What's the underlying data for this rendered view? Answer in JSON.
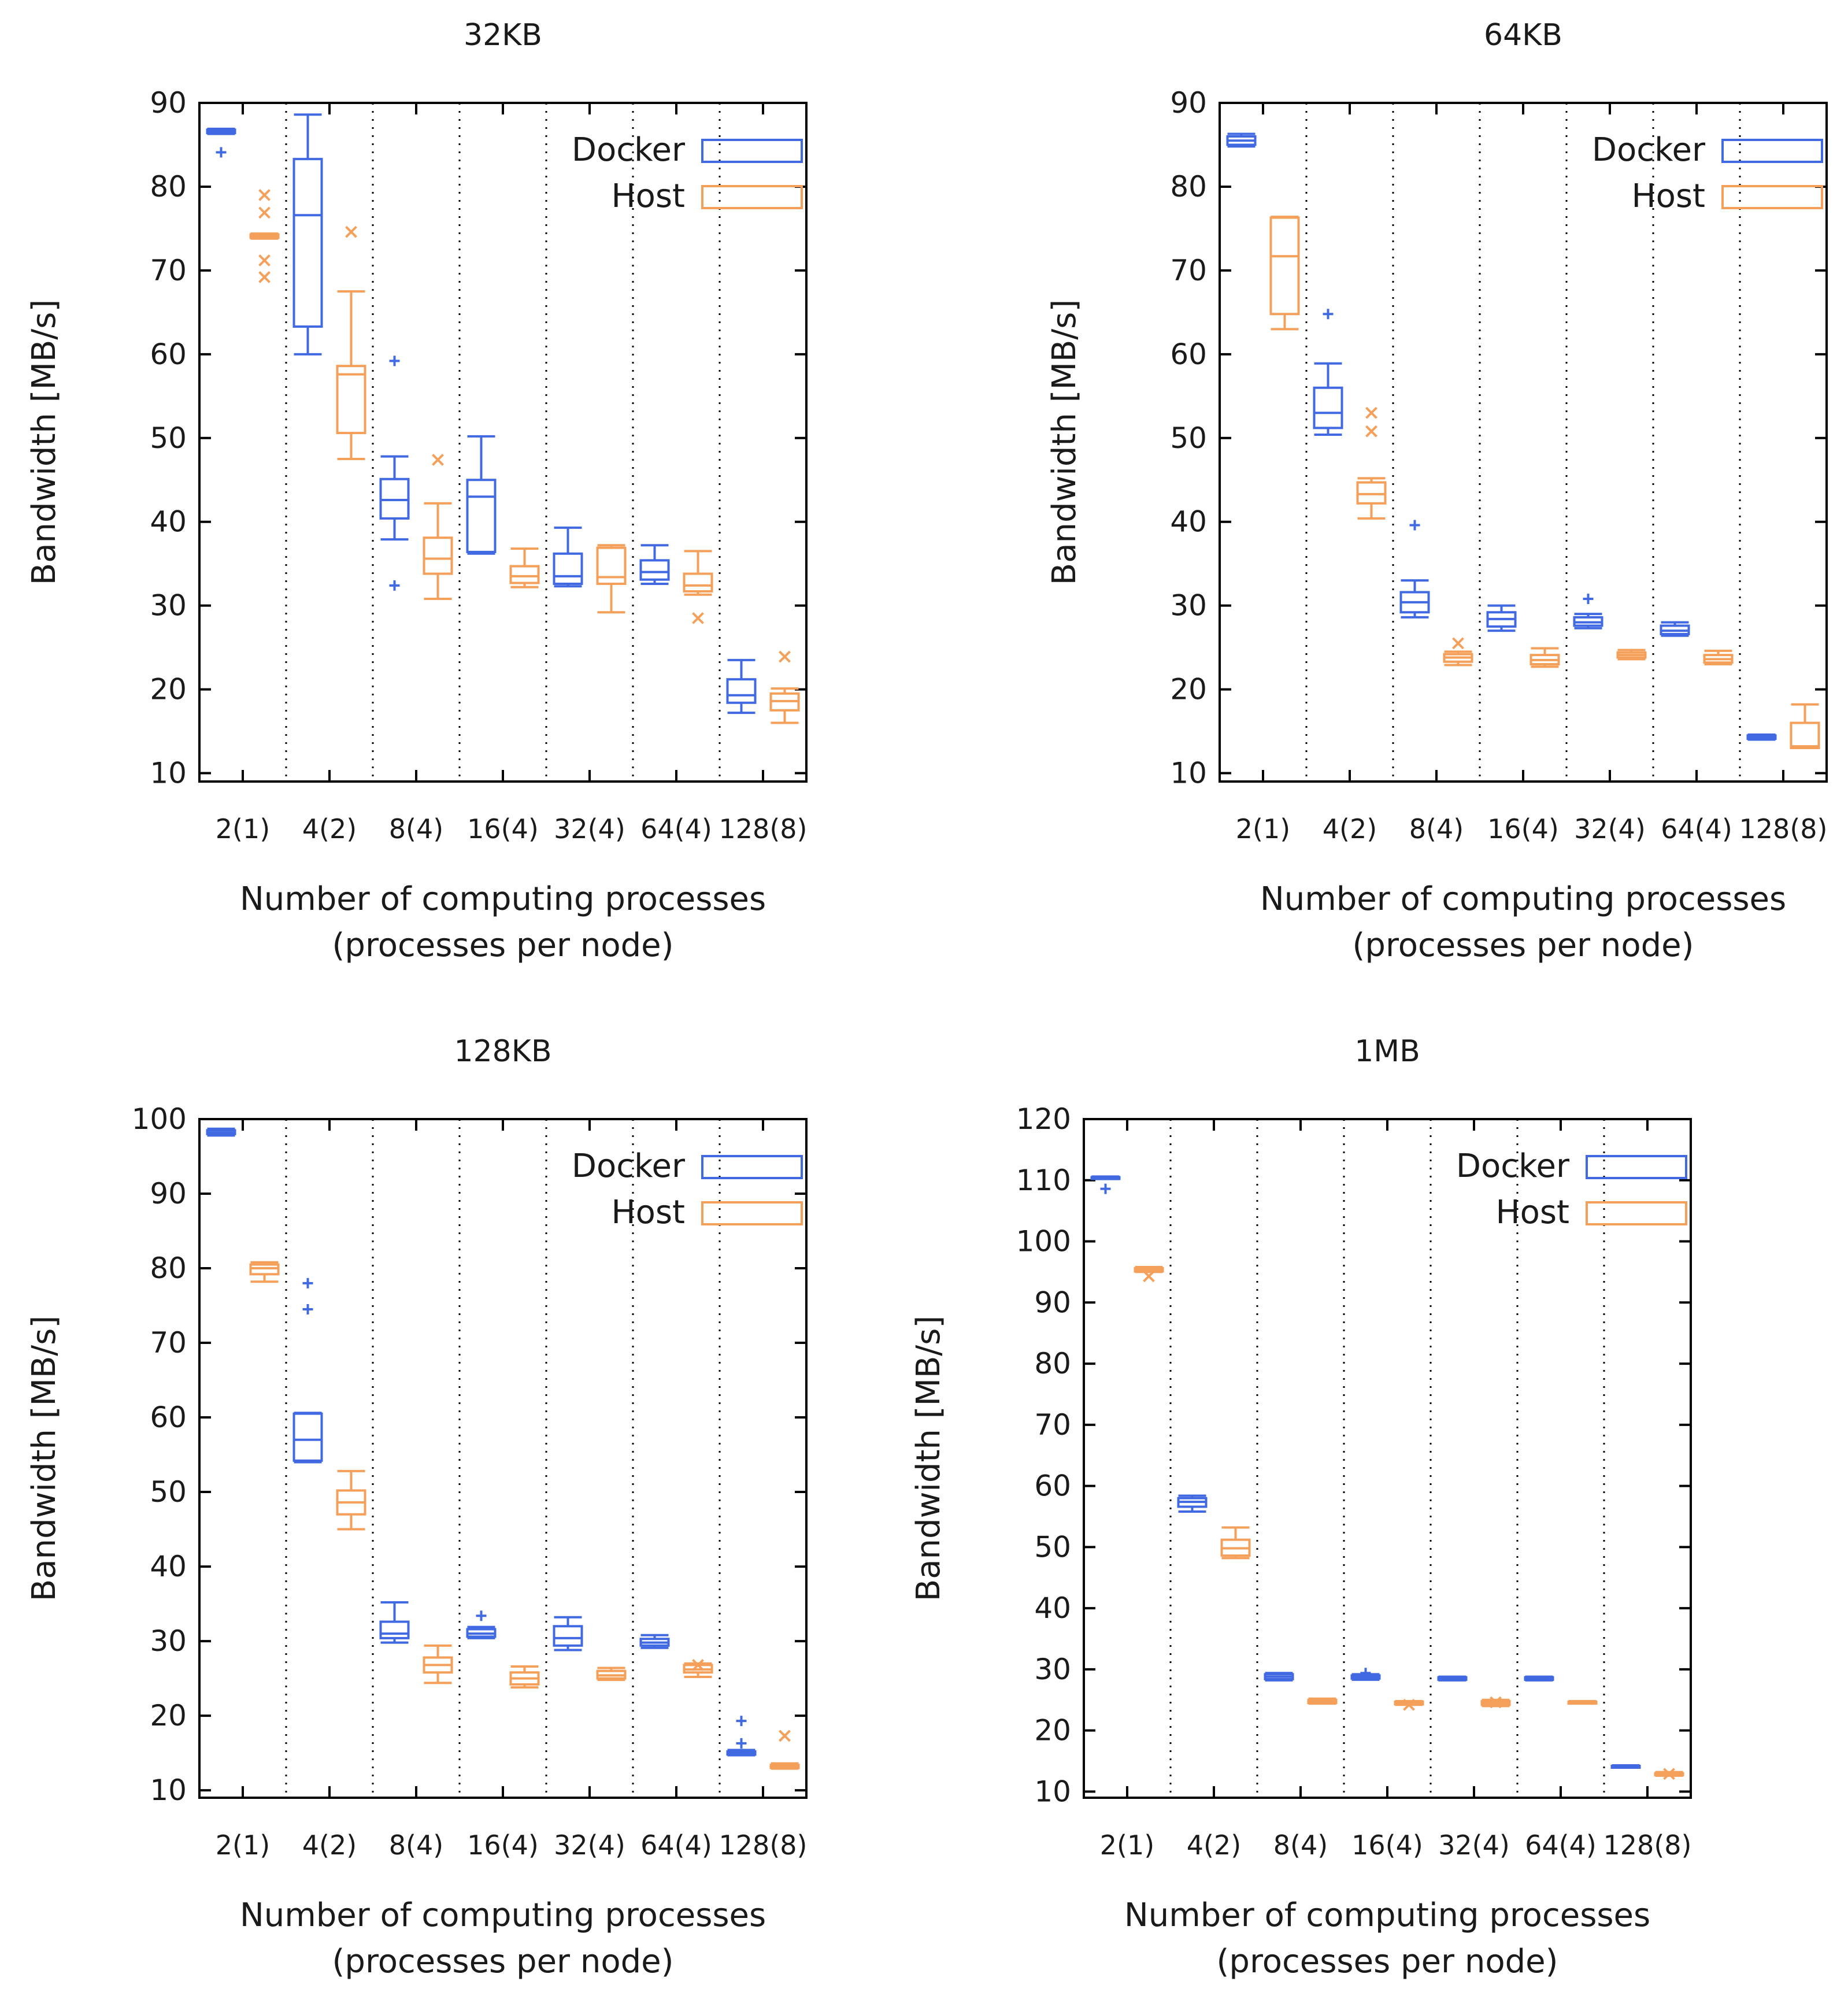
{
  "chart_data": [
    {
      "type": "boxplot",
      "title": "32KB",
      "xlabel": "Number of computing processes",
      "xlabel2": "(processes per node)",
      "ylabel": "Bandwidth [MB/s]",
      "ylim": [
        9,
        90
      ],
      "yticks": [
        10,
        20,
        30,
        40,
        50,
        60,
        70,
        80,
        90
      ],
      "categories": [
        "2(1)",
        "4(2)",
        "8(4)",
        "16(4)",
        "32(4)",
        "64(4)",
        "128(8)"
      ],
      "legend": [
        "Docker",
        "Host"
      ],
      "series": [
        {
          "name": "Docker",
          "color": "#4169e1",
          "outlier_marker": "+",
          "boxes": [
            {
              "min": 86.3,
              "q1": 86.4,
              "median": 86.6,
              "q3": 86.8,
              "max": 86.9,
              "outliers": [
                84.1
              ]
            },
            {
              "min": 60.0,
              "q1": 63.3,
              "median": 76.6,
              "q3": 83.3,
              "max": 88.6,
              "outliers": []
            },
            {
              "min": 37.9,
              "q1": 40.4,
              "median": 42.6,
              "q3": 45.1,
              "max": 47.8,
              "outliers": [
                59.2,
                32.4
              ]
            },
            {
              "min": 36.2,
              "q1": 36.4,
              "median": 43.0,
              "q3": 45.0,
              "max": 50.2,
              "outliers": []
            },
            {
              "min": 32.3,
              "q1": 32.6,
              "median": 33.5,
              "q3": 36.2,
              "max": 39.3,
              "outliers": []
            },
            {
              "min": 32.6,
              "q1": 33.1,
              "median": 34.0,
              "q3": 35.4,
              "max": 37.2,
              "outliers": []
            },
            {
              "min": 17.2,
              "q1": 18.4,
              "median": 19.3,
              "q3": 21.2,
              "max": 23.5,
              "outliers": []
            }
          ]
        },
        {
          "name": "Host",
          "color": "#f5a05a",
          "outlier_marker": "x",
          "boxes": [
            {
              "min": 73.8,
              "q1": 73.9,
              "median": 74.1,
              "q3": 74.3,
              "max": 74.4,
              "outliers": [
                79.0,
                76.9,
                71.2,
                69.2
              ]
            },
            {
              "min": 47.5,
              "q1": 50.6,
              "median": 57.6,
              "q3": 58.6,
              "max": 67.5,
              "outliers": [
                74.6
              ]
            },
            {
              "min": 30.8,
              "q1": 33.8,
              "median": 35.6,
              "q3": 38.1,
              "max": 42.2,
              "outliers": [
                47.4
              ]
            },
            {
              "min": 32.2,
              "q1": 32.7,
              "median": 33.5,
              "q3": 34.7,
              "max": 36.8,
              "outliers": []
            },
            {
              "min": 29.2,
              "q1": 32.6,
              "median": 33.4,
              "q3": 36.9,
              "max": 37.2,
              "outliers": []
            },
            {
              "min": 31.3,
              "q1": 31.7,
              "median": 32.4,
              "q3": 33.8,
              "max": 36.5,
              "outliers": [
                28.5
              ]
            },
            {
              "min": 16.0,
              "q1": 17.5,
              "median": 18.6,
              "q3": 19.5,
              "max": 20.1,
              "outliers": [
                23.9
              ]
            }
          ]
        }
      ]
    },
    {
      "type": "boxplot",
      "title": "64KB",
      "xlabel": "Number of computing processes",
      "xlabel2": "(processes per node)",
      "ylabel": "Bandwidth [MB/s]",
      "ylim": [
        9,
        90
      ],
      "yticks": [
        10,
        20,
        30,
        40,
        50,
        60,
        70,
        80,
        90
      ],
      "categories": [
        "2(1)",
        "4(2)",
        "8(4)",
        "16(4)",
        "32(4)",
        "64(4)",
        "128(8)"
      ],
      "legend": [
        "Docker",
        "Host"
      ],
      "series": [
        {
          "name": "Docker",
          "color": "#4169e1",
          "outlier_marker": "+",
          "boxes": [
            {
              "min": 84.8,
              "q1": 85.0,
              "median": 85.5,
              "q3": 86.0,
              "max": 86.3,
              "outliers": []
            },
            {
              "min": 50.4,
              "q1": 51.2,
              "median": 53.0,
              "q3": 56.0,
              "max": 58.9,
              "outliers": [
                64.8
              ]
            },
            {
              "min": 28.6,
              "q1": 29.2,
              "median": 30.4,
              "q3": 31.6,
              "max": 33.0,
              "outliers": [
                39.6
              ]
            },
            {
              "min": 27.0,
              "q1": 27.5,
              "median": 28.4,
              "q3": 29.2,
              "max": 30.0,
              "outliers": []
            },
            {
              "min": 27.3,
              "q1": 27.6,
              "median": 28.0,
              "q3": 28.6,
              "max": 29.0,
              "outliers": [
                30.8
              ]
            },
            {
              "min": 26.4,
              "q1": 26.6,
              "median": 27.0,
              "q3": 27.6,
              "max": 28.0,
              "outliers": []
            },
            {
              "min": 14.0,
              "q1": 14.1,
              "median": 14.3,
              "q3": 14.5,
              "max": 14.6,
              "outliers": []
            }
          ]
        },
        {
          "name": "Host",
          "color": "#f5a05a",
          "outlier_marker": "x",
          "boxes": [
            {
              "min": 63.0,
              "q1": 64.8,
              "median": 71.7,
              "q3": 76.3,
              "max": 76.4,
              "outliers": []
            },
            {
              "min": 40.4,
              "q1": 42.2,
              "median": 43.3,
              "q3": 44.7,
              "max": 45.2,
              "outliers": [
                53.0,
                50.8
              ]
            },
            {
              "min": 22.9,
              "q1": 23.3,
              "median": 23.8,
              "q3": 24.2,
              "max": 24.5,
              "outliers": [
                25.5
              ]
            },
            {
              "min": 22.7,
              "q1": 23.0,
              "median": 23.5,
              "q3": 24.1,
              "max": 24.9,
              "outliers": []
            },
            {
              "min": 23.6,
              "q1": 23.8,
              "median": 24.1,
              "q3": 24.4,
              "max": 24.7,
              "outliers": []
            },
            {
              "min": 23.0,
              "q1": 23.2,
              "median": 23.6,
              "q3": 24.1,
              "max": 24.6,
              "outliers": []
            },
            {
              "min": 13.0,
              "q1": 13.0,
              "median": 13.2,
              "q3": 16.0,
              "max": 18.2,
              "outliers": []
            }
          ]
        }
      ]
    },
    {
      "type": "boxplot",
      "title": "128KB",
      "xlabel": "Number of computing processes",
      "xlabel2": "(processes per node)",
      "ylabel": "Bandwidth [MB/s]",
      "ylim": [
        9,
        100
      ],
      "yticks": [
        10,
        20,
        30,
        40,
        50,
        60,
        70,
        80,
        90,
        100
      ],
      "categories": [
        "2(1)",
        "4(2)",
        "8(4)",
        "16(4)",
        "32(4)",
        "64(4)",
        "128(8)"
      ],
      "legend": [
        "Docker",
        "Host"
      ],
      "series": [
        {
          "name": "Docker",
          "color": "#4169e1",
          "outlier_marker": "+",
          "boxes": [
            {
              "min": 97.8,
              "q1": 98.0,
              "median": 98.2,
              "q3": 98.5,
              "max": 98.7,
              "outliers": []
            },
            {
              "min": 54.0,
              "q1": 54.2,
              "median": 57.0,
              "q3": 60.5,
              "max": 60.6,
              "outliers": [
                78.0,
                74.5
              ]
            },
            {
              "min": 29.8,
              "q1": 30.4,
              "median": 31.0,
              "q3": 32.6,
              "max": 35.2,
              "outliers": []
            },
            {
              "min": 30.4,
              "q1": 30.6,
              "median": 31.0,
              "q3": 31.6,
              "max": 31.9,
              "outliers": [
                33.4
              ]
            },
            {
              "min": 28.8,
              "q1": 29.4,
              "median": 30.4,
              "q3": 32.0,
              "max": 33.2,
              "outliers": []
            },
            {
              "min": 29.1,
              "q1": 29.4,
              "median": 29.8,
              "q3": 30.3,
              "max": 30.8,
              "outliers": []
            },
            {
              "min": 14.7,
              "q1": 14.8,
              "median": 15.0,
              "q3": 15.2,
              "max": 15.4,
              "outliers": [
                19.3,
                16.3
              ]
            }
          ]
        },
        {
          "name": "Host",
          "color": "#f5a05a",
          "outlier_marker": "x",
          "boxes": [
            {
              "min": 78.2,
              "q1": 79.2,
              "median": 80.0,
              "q3": 80.5,
              "max": 80.8,
              "outliers": []
            },
            {
              "min": 45.0,
              "q1": 47.0,
              "median": 48.6,
              "q3": 50.2,
              "max": 52.8,
              "outliers": []
            },
            {
              "min": 24.4,
              "q1": 25.8,
              "median": 26.8,
              "q3": 27.8,
              "max": 29.4,
              "outliers": []
            },
            {
              "min": 23.8,
              "q1": 24.2,
              "median": 25.0,
              "q3": 25.8,
              "max": 26.6,
              "outliers": []
            },
            {
              "min": 24.8,
              "q1": 25.0,
              "median": 25.4,
              "q3": 26.0,
              "max": 26.4,
              "outliers": []
            },
            {
              "min": 25.2,
              "q1": 25.8,
              "median": 26.2,
              "q3": 26.8,
              "max": 27.0,
              "outliers": [
                26.8
              ]
            },
            {
              "min": 12.9,
              "q1": 13.0,
              "median": 13.2,
              "q3": 13.4,
              "max": 13.6,
              "outliers": [
                17.3
              ]
            }
          ]
        }
      ]
    },
    {
      "type": "boxplot",
      "title": "1MB",
      "xlabel": "Number of computing processes",
      "xlabel2": "(processes per node)",
      "ylabel": "Bandwidth [MB/s]",
      "ylim": [
        9,
        120
      ],
      "yticks": [
        10,
        20,
        30,
        40,
        50,
        60,
        70,
        80,
        90,
        100,
        110,
        120
      ],
      "categories": [
        "2(1)",
        "4(2)",
        "8(4)",
        "16(4)",
        "32(4)",
        "64(4)",
        "128(8)"
      ],
      "legend": [
        "Docker",
        "Host"
      ],
      "series": [
        {
          "name": "Docker",
          "color": "#4169e1",
          "outlier_marker": "+",
          "boxes": [
            {
              "min": 110.2,
              "q1": 110.3,
              "median": 110.4,
              "q3": 110.5,
              "max": 110.6,
              "outliers": [
                108.6
              ]
            },
            {
              "min": 55.8,
              "q1": 56.6,
              "median": 57.4,
              "q3": 58.0,
              "max": 58.4,
              "outliers": []
            },
            {
              "min": 28.2,
              "q1": 28.4,
              "median": 28.8,
              "q3": 29.2,
              "max": 29.4,
              "outliers": []
            },
            {
              "min": 28.3,
              "q1": 28.5,
              "median": 28.8,
              "q3": 29.0,
              "max": 29.2,
              "outliers": [
                29.4
              ]
            },
            {
              "min": 28.2,
              "q1": 28.3,
              "median": 28.5,
              "q3": 28.7,
              "max": 28.8,
              "outliers": []
            },
            {
              "min": 28.2,
              "q1": 28.3,
              "median": 28.5,
              "q3": 28.7,
              "max": 28.8,
              "outliers": []
            },
            {
              "min": 14.1,
              "q1": 14.1,
              "median": 14.2,
              "q3": 14.2,
              "max": 14.3,
              "outliers": []
            }
          ]
        },
        {
          "name": "Host",
          "color": "#f5a05a",
          "outlier_marker": "x",
          "boxes": [
            {
              "min": 95.0,
              "q1": 95.1,
              "median": 95.3,
              "q3": 95.6,
              "max": 95.8,
              "outliers": [
                94.3
              ]
            },
            {
              "min": 48.2,
              "q1": 48.6,
              "median": 49.8,
              "q3": 51.2,
              "max": 53.2,
              "outliers": []
            },
            {
              "min": 24.4,
              "q1": 24.5,
              "median": 24.8,
              "q3": 25.0,
              "max": 25.2,
              "outliers": []
            },
            {
              "min": 24.2,
              "q1": 24.3,
              "median": 24.5,
              "q3": 24.7,
              "max": 24.8,
              "outliers": [
                24.2
              ]
            },
            {
              "min": 24.0,
              "q1": 24.2,
              "median": 24.5,
              "q3": 24.8,
              "max": 25.0,
              "outliers": [
                24.6
              ]
            },
            {
              "min": 24.4,
              "q1": 24.5,
              "median": 24.6,
              "q3": 24.7,
              "max": 24.8,
              "outliers": []
            },
            {
              "min": 12.6,
              "q1": 12.7,
              "median": 12.9,
              "q3": 13.0,
              "max": 13.2,
              "outliers": [
                12.9
              ]
            }
          ]
        }
      ]
    }
  ]
}
